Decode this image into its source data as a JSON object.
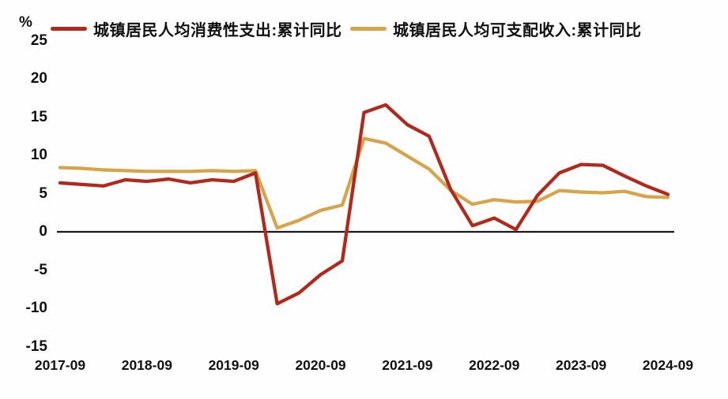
{
  "chart_data": {
    "type": "line",
    "title": "",
    "unit": "%",
    "xlabel": "",
    "ylabel": "%",
    "x": [
      "2017-09",
      "2017-12",
      "2018-03",
      "2018-06",
      "2018-09",
      "2018-12",
      "2019-03",
      "2019-06",
      "2019-09",
      "2019-12",
      "2020-03",
      "2020-06",
      "2020-09",
      "2020-12",
      "2021-03",
      "2021-06",
      "2021-09",
      "2021-12",
      "2022-03",
      "2022-06",
      "2022-09",
      "2022-12",
      "2023-03",
      "2023-06",
      "2023-09",
      "2023-12",
      "2024-03",
      "2024-06",
      "2024-09"
    ],
    "x_tick_labels": [
      "2017-09",
      "2018-09",
      "2019-09",
      "2020-09",
      "2021-09",
      "2022-09",
      "2023-09",
      "2024-09"
    ],
    "x_tick_every": 4,
    "y_ticks": [
      25,
      20,
      15,
      10,
      5,
      0,
      -5,
      -10,
      -15
    ],
    "ylim": [
      -15,
      25
    ],
    "grid": false,
    "legend_position": "top",
    "series": [
      {
        "name": "城镇居民人均消费性支出:累计同比",
        "color": "#b2281a",
        "values": [
          6.4,
          6.2,
          6.0,
          6.8,
          6.6,
          6.9,
          6.4,
          6.8,
          6.6,
          7.7,
          -9.4,
          -8.0,
          -5.6,
          -3.8,
          15.6,
          16.6,
          14.0,
          12.5,
          5.5,
          0.8,
          1.8,
          0.3,
          4.8,
          7.7,
          8.8,
          8.7,
          7.3,
          6.0,
          4.9
        ]
      },
      {
        "name": "城镇居民人均可支配收入:累计同比",
        "color": "#d7a44a",
        "values": [
          8.4,
          8.3,
          8.1,
          8.0,
          7.9,
          7.9,
          7.9,
          8.0,
          7.9,
          8.0,
          0.5,
          1.5,
          2.8,
          3.5,
          12.2,
          11.6,
          9.9,
          8.2,
          5.4,
          3.6,
          4.2,
          3.9,
          4.0,
          5.4,
          5.2,
          5.1,
          5.3,
          4.6,
          4.5
        ]
      }
    ],
    "zero_line_color": "#1a1a1a",
    "text_color": "#111111",
    "background": "#ffffff"
  }
}
